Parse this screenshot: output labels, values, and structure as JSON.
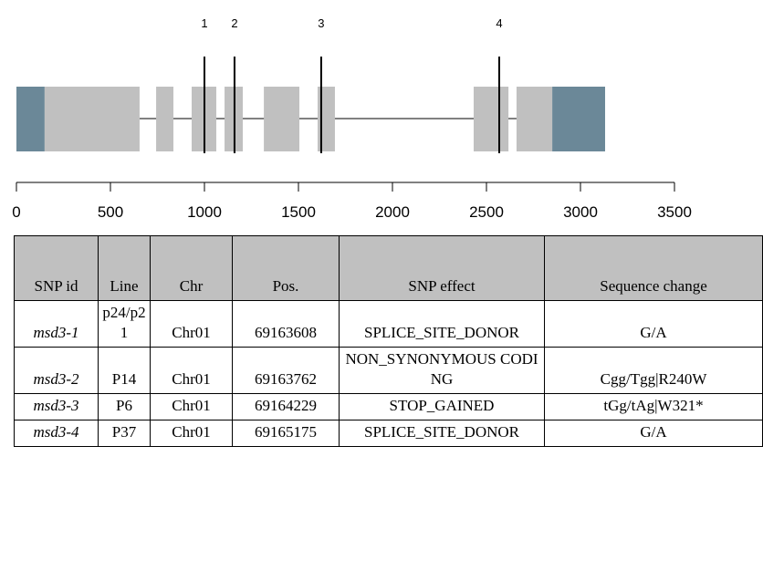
{
  "chart_data": {
    "type": "gene-model",
    "xlim": [
      0,
      3500
    ],
    "xticks": [
      0,
      500,
      1000,
      1500,
      2000,
      2500,
      3000,
      3500
    ],
    "segments": [
      {
        "start": 0,
        "end": 150,
        "color": "#6b8898"
      },
      {
        "start": 150,
        "end": 655,
        "color": "#c0c0c0"
      },
      {
        "start": 743,
        "end": 835,
        "color": "#c0c0c0"
      },
      {
        "start": 932,
        "end": 1063,
        "color": "#c0c0c0"
      },
      {
        "start": 1107,
        "end": 1204,
        "color": "#c0c0c0"
      },
      {
        "start": 1316,
        "end": 1505,
        "color": "#c0c0c0"
      },
      {
        "start": 1602,
        "end": 1694,
        "color": "#c0c0c0"
      },
      {
        "start": 2432,
        "end": 2617,
        "color": "#c0c0c0"
      },
      {
        "start": 2660,
        "end": 2850,
        "color": "#c0c0c0"
      },
      {
        "start": 2850,
        "end": 3131,
        "color": "#6b8898"
      }
    ],
    "intron": [
      655,
      2660
    ],
    "snp_labels": [
      "1",
      "2",
      "3",
      "4"
    ],
    "snp_positions": [
      1000,
      1160,
      1621,
      2568
    ]
  },
  "table": {
    "header": [
      "SNP id",
      "Line",
      "Chr",
      "Pos.",
      "SNP effect",
      "Sequence change"
    ],
    "rows": [
      [
        "msd3-1",
        "p24/p21",
        "Chr01",
        69163608,
        "SPLICE_SITE_DONOR",
        "G/A"
      ],
      [
        "msd3-2",
        "P14",
        "Chr01",
        69163762,
        "NON_SYNONYMOUS CODING",
        "Cgg/Tgg|R240W"
      ],
      [
        "msd3-3",
        "P6",
        "Chr01",
        69164229,
        "STOP_GAINED",
        "tGg/tAg|W321*"
      ],
      [
        "msd3-4",
        "P37",
        "Chr01",
        69165175,
        "SPLICE_SITE_DONOR",
        "G/A"
      ]
    ]
  }
}
